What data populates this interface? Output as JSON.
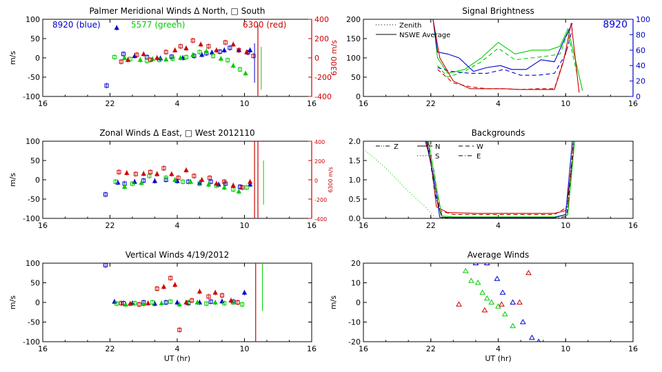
{
  "chart_data": [
    {
      "id": "meridional",
      "type": "scatter",
      "title": "Palmer Meridional Winds Δ North, □ South",
      "ylabel": "m/s",
      "ylabel_right": "6300 m/s",
      "xlim": [
        16,
        40
      ],
      "ylim": [
        -100,
        100
      ],
      "ylim_right": [
        -400,
        400
      ],
      "xticks": [
        16,
        22,
        28,
        34,
        40
      ],
      "xticklabels": [
        "16",
        "22",
        "4",
        "10",
        "16"
      ],
      "yticks": [
        -100,
        -50,
        0,
        50,
        100
      ],
      "yticklabels": [
        "-100",
        "-50",
        "0",
        "50",
        "100"
      ],
      "yticks_right": [
        -400,
        -200,
        0,
        200,
        400
      ],
      "yticklabels_right": [
        "-400",
        "-200",
        "0",
        "200",
        "400"
      ],
      "annotations": [
        {
          "text": "8920 (blue)",
          "color": "#0000cc"
        },
        {
          "text": "5577 (green)",
          "color": "#00cc00"
        },
        {
          "text": "6300 (red)",
          "color": "#cc0000"
        }
      ],
      "series": [
        {
          "color": "#0000cc",
          "x": [
            21.7,
            22.6,
            23.2,
            24.2,
            25.3,
            26.5,
            27.5,
            28.5,
            29.5,
            30.2,
            30.6,
            31.1,
            31.8,
            32.2,
            32.7,
            33.5,
            34.3,
            34.5
          ],
          "y": [
            -72,
            78,
            10,
            5,
            2,
            -1,
            3,
            0,
            5,
            8,
            12,
            14,
            16,
            20,
            26,
            20,
            14,
            20
          ]
        },
        {
          "color": "#00cc00",
          "x": [
            22.4,
            23.3,
            23.8,
            24.7,
            25.3,
            25.8,
            26.4,
            27.0,
            27.6,
            28.3,
            28.8,
            29.4,
            30.0,
            30.6,
            31.2,
            31.9,
            32.5,
            33.0,
            33.6,
            34.1
          ],
          "y": [
            2,
            0,
            -3,
            -5,
            -8,
            -3,
            -5,
            -4,
            -2,
            0,
            2,
            8,
            15,
            17,
            5,
            -2,
            -6,
            -20,
            -30,
            -40
          ]
        },
        {
          "color": "#cc0000",
          "x": [
            23.0,
            23.6,
            24.4,
            25.0,
            25.6,
            26.2,
            27.0,
            27.8,
            28.3,
            28.8,
            29.4,
            30.1,
            30.8,
            31.5,
            32.3,
            33.0,
            33.5,
            34.2,
            34.8
          ],
          "y": [
            -10,
            -5,
            8,
            10,
            -5,
            0,
            15,
            20,
            30,
            25,
            45,
            35,
            30,
            20,
            40,
            35,
            20,
            15,
            5
          ]
        }
      ]
    },
    {
      "id": "brightness",
      "type": "line",
      "title": "Signal Brightness",
      "xlim": [
        16,
        40
      ],
      "ylim": [
        0,
        200
      ],
      "ylim_right": [
        0,
        100
      ],
      "xticks": [
        16,
        22,
        28,
        34,
        40
      ],
      "xticklabels": [
        "16",
        "22",
        "4",
        "10",
        "16"
      ],
      "yticks": [
        0,
        50,
        100,
        150,
        200
      ],
      "yticklabels": [
        "0",
        "50",
        "100",
        "150",
        "200"
      ],
      "yticks_right": [
        0,
        20,
        40,
        60,
        80,
        100
      ],
      "yticklabels_right": [
        "0",
        "20",
        "40",
        "60",
        "80",
        "100"
      ],
      "legend": [
        {
          "label": "Zenith",
          "style": "dotted"
        },
        {
          "label": "NSWE Average",
          "style": "solid"
        }
      ],
      "annotation": "8920",
      "series": [
        {
          "color": "#00cc00",
          "dash": "",
          "x": [
            22.2,
            22.6,
            23.5,
            25,
            26.5,
            28,
            29.5,
            31,
            32.5,
            33.5,
            34.2,
            35.0,
            35.5
          ],
          "y": [
            200,
            100,
            60,
            70,
            100,
            140,
            110,
            120,
            120,
            130,
            175,
            80,
            15
          ]
        },
        {
          "color": "#00cc00",
          "dash": "6,4",
          "x": [
            22.6,
            23.5,
            25,
            26.5,
            28,
            29.5,
            31,
            32.5,
            33.5,
            34.2,
            35.0
          ],
          "y": [
            80,
            50,
            65,
            90,
            125,
            95,
            100,
            105,
            110,
            165,
            60
          ]
        },
        {
          "color": "#0000cc",
          "dash": "",
          "x": [
            22.2,
            22.6,
            23.5,
            24.5,
            25.8,
            27.0,
            28.2,
            29.2,
            30.5,
            31.8,
            33.0,
            34.0,
            34.6
          ],
          "y": [
            200,
            115,
            110,
            100,
            65,
            75,
            80,
            70,
            70,
            95,
            90,
            155,
            190
          ]
        },
        {
          "color": "#0000cc",
          "dash": "6,4",
          "x": [
            22.6,
            23.8,
            25.5,
            27.0,
            28.5,
            30.0,
            31.5,
            33.0,
            34.0,
            34.6
          ],
          "y": [
            75,
            65,
            60,
            60,
            70,
            55,
            55,
            60,
            110,
            175
          ]
        },
        {
          "color": "#cc0000",
          "dash": "",
          "x": [
            22.2,
            22.8,
            24,
            25.5,
            27,
            28.5,
            30,
            31.5,
            33,
            33.8,
            34.5,
            35.2
          ],
          "y": [
            200,
            100,
            40,
            20,
            20,
            20,
            18,
            18,
            18,
            90,
            190,
            10
          ]
        },
        {
          "color": "#cc0000",
          "dash": "6,4",
          "x": [
            22.6,
            24,
            25.5,
            27,
            28.5,
            30,
            31.5,
            33,
            34.2
          ],
          "y": [
            70,
            35,
            25,
            20,
            20,
            18,
            20,
            20,
            130
          ]
        }
      ]
    },
    {
      "id": "zonal",
      "type": "scatter",
      "title": "Zonal Winds Δ East, □ West 2012110",
      "ylabel": "m/s",
      "ylabel_right": "6300 m/s",
      "xlim": [
        16,
        40
      ],
      "ylim": [
        -100,
        100
      ],
      "ylim_right": [
        -400,
        400
      ],
      "xticks": [
        16,
        22,
        28,
        34,
        40
      ],
      "xticklabels": [
        "16",
        "22",
        "4",
        "10",
        "16"
      ],
      "yticks": [
        -100,
        -50,
        0,
        50,
        100
      ],
      "yticklabels": [
        "-100",
        "-50",
        "0",
        "50",
        "100"
      ],
      "yticks_right": [
        -400,
        -200,
        0,
        200,
        400
      ],
      "yticklabels_right": [
        "-400",
        "-200",
        "0",
        "200",
        "400"
      ],
      "series": [
        {
          "color": "#0000cc",
          "x": [
            21.6,
            22.7,
            23.3,
            24.2,
            25.0,
            26.0,
            27.0,
            28.0,
            29.0,
            30.0,
            31.0,
            31.7,
            32.3,
            33.0,
            33.6,
            34.5
          ],
          "y": [
            -38,
            -7,
            -10,
            -5,
            -2,
            -3,
            0,
            -3,
            -5,
            -8,
            -5,
            -12,
            -10,
            -15,
            -18,
            -12
          ]
        },
        {
          "color": "#00cc00",
          "x": [
            22.5,
            23.3,
            24.0,
            24.8,
            25.5,
            26.2,
            27.0,
            27.8,
            28.5,
            29.2,
            30.0,
            30.8,
            31.5,
            32.2,
            33.0,
            33.5,
            34.2
          ],
          "y": [
            -5,
            -18,
            -10,
            -8,
            10,
            15,
            5,
            0,
            -5,
            -5,
            -10,
            -12,
            -15,
            -20,
            -25,
            -30,
            -20
          ]
        },
        {
          "color": "#cc0000",
          "x": [
            22.8,
            23.5,
            24.3,
            25.0,
            25.6,
            26.2,
            26.8,
            27.5,
            28.1,
            28.8,
            29.5,
            30.2,
            30.9,
            31.5,
            32.2,
            33.0,
            33.8,
            34.5
          ],
          "y": [
            20,
            18,
            15,
            16,
            20,
            15,
            30,
            15,
            5,
            25,
            10,
            0,
            5,
            -10,
            -5,
            -15,
            -20,
            -5
          ]
        }
      ]
    },
    {
      "id": "backgrounds",
      "type": "line",
      "title": "Backgrounds",
      "xlim": [
        16,
        40
      ],
      "ylim": [
        0,
        2
      ],
      "xticks": [
        16,
        22,
        28,
        34,
        40
      ],
      "xticklabels": [
        "16",
        "22",
        "4",
        "10",
        "16"
      ],
      "yticks": [
        0,
        0.5,
        1.0,
        1.5,
        2.0
      ],
      "yticklabels": [
        "0.0",
        "0.5",
        "1.0",
        "1.5",
        "2.0"
      ],
      "legend": [
        {
          "label": "Z",
          "style": "dash-dot-dot"
        },
        {
          "label": "N",
          "style": "solid"
        },
        {
          "label": "W",
          "style": "dashed"
        },
        {
          "label": "S",
          "style": "dotted"
        },
        {
          "label": "E",
          "style": "dash-dot"
        }
      ],
      "series": [
        {
          "color": "#00cc00",
          "dash": "1,3",
          "x": [
            16,
            18,
            20,
            21.5,
            22.3
          ],
          "y": [
            1.8,
            1.3,
            0.7,
            0.3,
            0.05
          ]
        },
        {
          "color": "#cc0000",
          "dash": "",
          "x": [
            21.5,
            22,
            22.5,
            23.5,
            26,
            30,
            33,
            34.0,
            34.5,
            34.8
          ],
          "y": [
            2.0,
            1.5,
            0.3,
            0.15,
            0.13,
            0.13,
            0.13,
            0.2,
            1.2,
            2.0
          ]
        },
        {
          "color": "#cc0000",
          "dash": "6,4",
          "x": [
            21.7,
            22.3,
            22.8,
            24,
            26,
            30,
            33,
            34.2,
            34.7
          ],
          "y": [
            2.0,
            1.2,
            0.2,
            0.1,
            0.1,
            0.1,
            0.1,
            0.3,
            2.0
          ]
        },
        {
          "color": "#00cc00",
          "dash": "",
          "x": [
            21.8,
            22.5,
            23,
            24,
            26,
            30,
            33,
            34.2,
            34.8
          ],
          "y": [
            2.0,
            0.8,
            0.06,
            0.04,
            0.04,
            0.04,
            0.04,
            0.1,
            2.0
          ]
        },
        {
          "color": "#0000cc",
          "dash": "",
          "x": [
            21.6,
            22.3,
            22.8,
            24,
            26,
            30,
            33,
            34.0,
            34.6
          ],
          "y": [
            2.0,
            1.0,
            0.03,
            0.02,
            0.02,
            0.02,
            0.02,
            0.1,
            2.0
          ]
        },
        {
          "color": "#000000",
          "dash": "6,3,1,3",
          "x": [
            21.7,
            22.4,
            23,
            24,
            30,
            33,
            34.1,
            34.7
          ],
          "y": [
            2.0,
            0.6,
            0.02,
            0.0,
            0.0,
            0.0,
            0.05,
            2.0
          ]
        }
      ]
    },
    {
      "id": "vertical",
      "type": "scatter",
      "title": "Vertical Winds 4/19/2012",
      "ylabel": "m/s",
      "xlabel": "UT (hr)",
      "xlim": [
        16,
        40
      ],
      "ylim": [
        -100,
        100
      ],
      "xticks": [
        16,
        22,
        28,
        34,
        40
      ],
      "xticklabels": [
        "16",
        "22",
        "4",
        "10",
        "16"
      ],
      "yticks": [
        -100,
        -50,
        0,
        50,
        100
      ],
      "yticklabels": [
        "-100",
        "-50",
        "0",
        "50",
        "100"
      ],
      "series": [
        {
          "color": "#0000cc",
          "x": [
            21.6,
            22.4,
            23.2,
            24.0,
            25.0,
            26.0,
            27.0,
            28.0,
            29.0,
            30.0,
            31.0,
            32.0,
            33.0,
            34.0
          ],
          "y": [
            95,
            2,
            -2,
            -2,
            0,
            -3,
            0,
            0,
            -2,
            0,
            2,
            3,
            2,
            25
          ]
        },
        {
          "color": "#00cc00",
          "x": [
            22.6,
            23.4,
            24.2,
            25.0,
            25.8,
            26.6,
            27.4,
            28.2,
            29.0,
            29.8,
            30.6,
            31.4,
            32.2,
            33.0,
            33.8
          ],
          "y": [
            -3,
            -5,
            -2,
            -4,
            0,
            -2,
            2,
            -5,
            0,
            0,
            -3,
            0,
            -2,
            0,
            -5
          ]
        },
        {
          "color": "#cc0000",
          "x": [
            23.0,
            23.8,
            24.6,
            25.4,
            26.2,
            26.8,
            27.4,
            27.8,
            28.2,
            28.8,
            29.3,
            30.0,
            30.8,
            31.4,
            32.0,
            32.8,
            33.4
          ],
          "y": [
            -2,
            -3,
            -5,
            -2,
            35,
            40,
            62,
            45,
            -70,
            0,
            5,
            28,
            15,
            25,
            18,
            5,
            0
          ]
        }
      ]
    },
    {
      "id": "average",
      "type": "scatter",
      "title": "Average Winds",
      "ylabel": "m/s",
      "xlabel": "UT (hr)",
      "xlim": [
        16,
        40
      ],
      "ylim": [
        -20,
        20
      ],
      "xticks": [
        16,
        22,
        28,
        34,
        40
      ],
      "xticklabels": [
        "16",
        "22",
        "4",
        "10",
        "16"
      ],
      "yticks": [
        -20,
        -10,
        0,
        10,
        20
      ],
      "yticklabels": [
        "-20",
        "-10",
        "0",
        "10",
        "20"
      ],
      "series": [
        {
          "color": "#0000cc",
          "x": [
            26.0,
            27.0,
            27.9,
            28.4,
            29.3,
            30.2,
            31.0,
            31.6
          ],
          "y": [
            20,
            20,
            12,
            5,
            0,
            -10,
            -18,
            -20
          ]
        },
        {
          "color": "#00cc00",
          "x": [
            25.1,
            25.6,
            26.2,
            26.6,
            27.0,
            27.4,
            28.0,
            28.6,
            29.3
          ],
          "y": [
            16,
            11,
            10,
            5,
            2,
            0,
            -2,
            -6,
            -12
          ]
        },
        {
          "color": "#cc0000",
          "x": [
            24.5,
            26.8,
            28.3,
            29.9,
            30.7,
            31.8
          ],
          "y": [
            -1,
            -4,
            -1,
            0,
            15,
            -21
          ]
        }
      ]
    }
  ],
  "colors": {
    "blue": "#0000cc",
    "green": "#00cc00",
    "red": "#cc0000"
  }
}
